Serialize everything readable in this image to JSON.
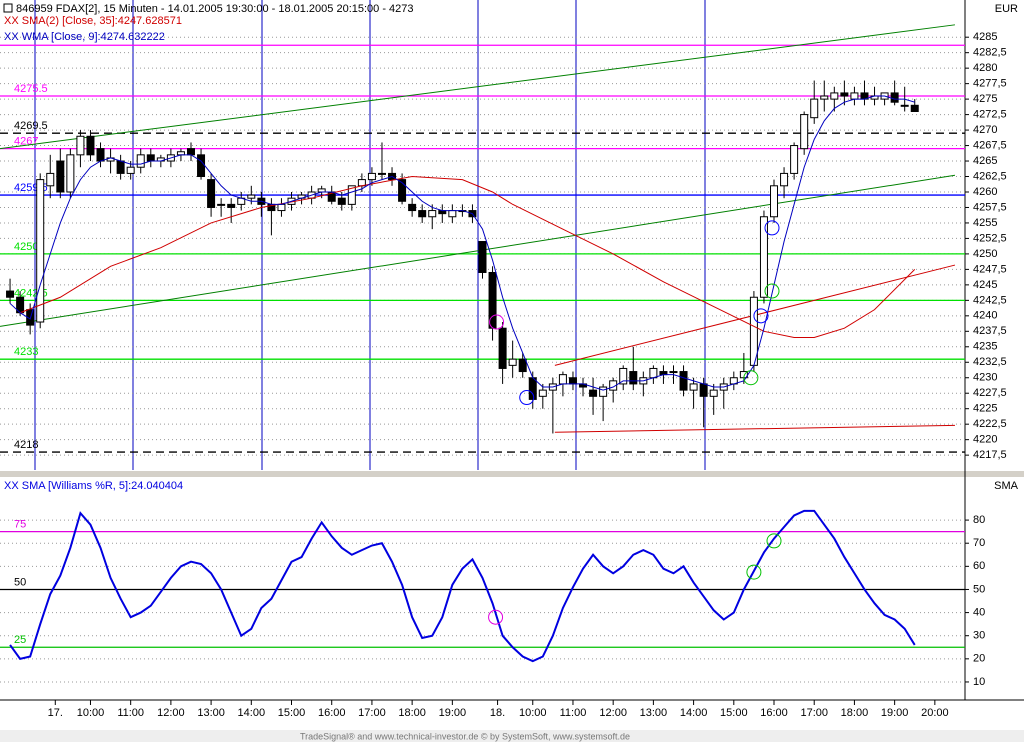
{
  "header": {
    "title": "846959 FDAX[2], 15 Minuten - 14.01.2005 19:30:00 - 18.01.2005 20:15:00 - 4273",
    "currency": "EUR"
  },
  "chart_data": [
    {
      "type": "candlestick",
      "candles": [
        [
          4244,
          4246,
          4242,
          4243
        ],
        [
          4243,
          4244,
          4240,
          4240.5
        ],
        [
          4241,
          4242,
          4237,
          4238.5
        ],
        [
          4239,
          4263,
          4238,
          4262
        ],
        [
          4261,
          4266,
          4259,
          4263
        ],
        [
          4265,
          4267,
          4259,
          4260
        ],
        [
          4260,
          4267,
          4259,
          4266
        ],
        [
          4266,
          4270,
          4264,
          4269
        ],
        [
          4269,
          4270,
          4265,
          4266
        ],
        [
          4267,
          4268,
          4264,
          4265
        ],
        [
          4265,
          4267,
          4263,
          4265.5
        ],
        [
          4265,
          4266,
          4262,
          4263
        ],
        [
          4263,
          4265,
          4262,
          4264
        ],
        [
          4264,
          4267,
          4263,
          4266
        ],
        [
          4266,
          4267,
          4264,
          4265
        ],
        [
          4265,
          4266,
          4264,
          4265.5
        ],
        [
          4265,
          4267,
          4264,
          4266
        ],
        [
          4266,
          4267,
          4265,
          4266.5
        ],
        [
          4267,
          4268,
          4265,
          4266
        ],
        [
          4266,
          4267,
          4262,
          4262.5
        ],
        [
          4262,
          4263,
          4256,
          4257.5
        ],
        [
          4258,
          4259,
          4256,
          4258
        ],
        [
          4258,
          4259,
          4255,
          4257.5
        ],
        [
          4258,
          4260,
          4257,
          4259
        ],
        [
          4259,
          4261,
          4258,
          4259.5
        ],
        [
          4259,
          4260,
          4256,
          4258
        ],
        [
          4258,
          4259,
          4253,
          4257
        ],
        [
          4257,
          4259,
          4256,
          4258
        ],
        [
          4258,
          4260,
          4257,
          4259
        ],
        [
          4259,
          4260,
          4258,
          4259.5
        ],
        [
          4259,
          4261,
          4258,
          4260
        ],
        [
          4260,
          4261,
          4259,
          4260.5
        ],
        [
          4260,
          4261,
          4258,
          4258.5
        ],
        [
          4259,
          4260,
          4257,
          4258
        ],
        [
          4258,
          4261,
          4257,
          4261
        ],
        [
          4261,
          4263,
          4260,
          4262
        ],
        [
          4262,
          4264,
          4261,
          4263
        ],
        [
          4263,
          4268,
          4262,
          4263
        ],
        [
          4263,
          4264,
          4261,
          4262
        ],
        [
          4262,
          4263,
          4258,
          4258.5
        ],
        [
          4258,
          4259,
          4256,
          4257
        ],
        [
          4257,
          4258,
          4255,
          4256
        ],
        [
          4256,
          4258,
          4254,
          4257
        ],
        [
          4257,
          4258,
          4255,
          4256.5
        ],
        [
          4256,
          4258,
          4255,
          4257
        ],
        [
          4257,
          4258,
          4256,
          4257
        ],
        [
          4257,
          4258,
          4255,
          4256
        ],
        [
          4252,
          4252,
          4246,
          4247
        ],
        [
          4247,
          4248,
          4236,
          4238
        ],
        [
          4238,
          4239,
          4229,
          4231.5
        ],
        [
          4232,
          4236,
          4230,
          4233
        ],
        [
          4233,
          4234,
          4230,
          4231
        ],
        [
          4230,
          4231,
          4225,
          4226.5
        ],
        [
          4227,
          4229,
          4225,
          4228
        ],
        [
          4228,
          4230,
          4221,
          4229
        ],
        [
          4229,
          4231,
          4227,
          4230.5
        ],
        [
          4230,
          4231,
          4228,
          4229
        ],
        [
          4229,
          4230,
          4227,
          4228.5
        ],
        [
          4228,
          4230,
          4224,
          4227
        ],
        [
          4227,
          4229,
          4223,
          4228.5
        ],
        [
          4228,
          4230,
          4226,
          4229.5
        ],
        [
          4229,
          4232,
          4228,
          4231.5
        ],
        [
          4231,
          4235,
          4228,
          4229
        ],
        [
          4229,
          4231,
          4227,
          4230
        ],
        [
          4230,
          4232,
          4229,
          4231.5
        ],
        [
          4231,
          4232,
          4229,
          4230.5
        ],
        [
          4231,
          4232,
          4229,
          4231
        ],
        [
          4231,
          4232,
          4227,
          4228
        ],
        [
          4228,
          4230,
          4225,
          4229
        ],
        [
          4229,
          4230,
          4222,
          4227
        ],
        [
          4227,
          4229,
          4224,
          4228
        ],
        [
          4228,
          4230,
          4225,
          4229
        ],
        [
          4229,
          4231,
          4228,
          4230
        ],
        [
          4230,
          4234,
          4229,
          4231
        ],
        [
          4232,
          4244,
          4231,
          4243
        ],
        [
          4243,
          4257,
          4242,
          4256
        ],
        [
          4256,
          4262,
          4255,
          4261
        ],
        [
          4261,
          4264,
          4259,
          4263
        ],
        [
          4263,
          4268,
          4262,
          4267.5
        ],
        [
          4267,
          4273,
          4266,
          4272.5
        ],
        [
          4272,
          4278,
          4271,
          4275
        ],
        [
          4275,
          4278,
          4273,
          4275.5
        ],
        [
          4275,
          4277,
          4273,
          4276
        ],
        [
          4276,
          4278,
          4274,
          4275.5
        ],
        [
          4275,
          4277,
          4274,
          4276
        ],
        [
          4276,
          4278,
          4274,
          4275
        ],
        [
          4275,
          4277,
          4274,
          4275.5
        ],
        [
          4275,
          4276,
          4274,
          4276
        ],
        [
          4276,
          4278,
          4274,
          4274.5
        ],
        [
          4274,
          4277,
          4273,
          4274
        ],
        [
          4274,
          4275,
          4273,
          4273
        ]
      ],
      "series": [
        {
          "name": "XX SMA(2) [Close, 35]:4247.628571",
          "color": "#d00000",
          "x": [
            1,
            5,
            10,
            15,
            20,
            25,
            30,
            35,
            40,
            45,
            48,
            50,
            55,
            60,
            65,
            70,
            75,
            78,
            80,
            83,
            86,
            90
          ],
          "values": [
            4240.5,
            4243,
            4248,
            4251,
            4255,
            4257.5,
            4259,
            4261,
            4262.5,
            4262,
            4260,
            4258,
            4254,
            4250,
            4245.5,
            4241.5,
            4237.5,
            4236.5,
            4236.5,
            4238,
            4241,
            4247.5
          ]
        },
        {
          "name": "XX WMA [Close, 9]:4274.632222",
          "color": "#0000c0",
          "values": [
            4242,
            4240.5,
            4239.5,
            4245,
            4250,
            4255,
            4259,
            4262,
            4264,
            4265,
            4265.5,
            4265,
            4264.5,
            4264.5,
            4265,
            4265,
            4265.5,
            4266,
            4266,
            4265,
            4263,
            4261,
            4259.5,
            4259,
            4258.5,
            4258.5,
            4258,
            4258,
            4258.5,
            4259,
            4259.5,
            4260,
            4260,
            4259.5,
            4260,
            4260.5,
            4261.5,
            4262,
            4262.5,
            4261.5,
            4260,
            4258.5,
            4257.5,
            4257,
            4257,
            4257,
            4256.5,
            4254,
            4249,
            4243,
            4238,
            4234,
            4230,
            4228.5,
            4228.5,
            4229,
            4229,
            4229,
            4228.5,
            4228,
            4228.5,
            4229.5,
            4229.5,
            4229.5,
            4230,
            4230.5,
            4230.5,
            4230,
            4229.5,
            4229,
            4228.5,
            4228.5,
            4229,
            4229.5,
            4232,
            4238,
            4245,
            4252,
            4258,
            4264,
            4268.5,
            4271.5,
            4273.5,
            4274.5,
            4275,
            4275,
            4275.5,
            4275.5,
            4275,
            4275,
            4274.5
          ]
        }
      ],
      "trendlines": [
        {
          "x": [
            -1,
            94
          ],
          "values": [
            4267,
            4287
          ],
          "color": "#008000"
        },
        {
          "x": [
            -1,
            94
          ],
          "values": [
            4238.3,
            4262.7
          ],
          "color": "#008000"
        },
        {
          "x": [
            54.2,
            94
          ],
          "values": [
            4221.2,
            4222.3
          ],
          "color": "#d00000"
        },
        {
          "x": [
            54.2,
            94
          ],
          "values": [
            4232,
            4248.2
          ],
          "color": "#d00000"
        }
      ],
      "levels": [
        {
          "value": 4283.7,
          "label": null,
          "color": "#ff00ff"
        },
        {
          "value": 4275.5,
          "color": "#ff00ff"
        },
        {
          "value": 4269.5,
          "color": "#000000",
          "style": "dashed"
        },
        {
          "value": 4267,
          "color": "#ff00ff"
        },
        {
          "value": 4259.5,
          "color": "#0000ff"
        },
        {
          "value": 4250,
          "color": "#00e000"
        },
        {
          "value": 4242.5,
          "color": "#00e000"
        },
        {
          "value": 4233,
          "color": "#00e000"
        },
        {
          "value": 4218,
          "color": "#000000",
          "style": "dashed"
        }
      ],
      "markers": [
        {
          "x": 51.4,
          "y": 4226.8,
          "color": "#0000ff"
        },
        {
          "x": 48.4,
          "y": 4239,
          "color": "#e000e0"
        },
        {
          "x": 73.7,
          "y": 4230,
          "color": "#00c000"
        },
        {
          "x": 74.7,
          "y": 4240,
          "color": "#0000ff"
        },
        {
          "x": 75.8,
          "y": 4244,
          "color": "#00c000"
        },
        {
          "x": 75.8,
          "y": 4254.2,
          "color": "#0000ff"
        }
      ],
      "xlim": [
        -1,
        95
      ],
      "ylim": [
        4215.1,
        4288.1
      ],
      "yticks": [
        {
          "value": 4217.5,
          "label": "4217,5"
        },
        4220,
        {
          "value": 4222.5,
          "label": "4222,5"
        },
        4225,
        {
          "value": 4227.5,
          "label": "4227,5"
        },
        4230,
        {
          "value": 4232.5,
          "label": "4232,5"
        },
        4235,
        {
          "value": 4237.5,
          "label": "4237,5"
        },
        4240,
        {
          "value": 4242.5,
          "label": "4242,5"
        },
        4245,
        {
          "value": 4247.5,
          "label": "4247,5"
        },
        4250,
        {
          "value": 4252.5,
          "label": "4252,5"
        },
        4255,
        {
          "value": 4257.5,
          "label": "4257,5"
        },
        4260,
        {
          "value": 4262.5,
          "label": "4262,5"
        },
        4265,
        {
          "value": 4267.5,
          "label": "4267,5"
        },
        4270,
        {
          "value": 4272.5,
          "label": "4272,5"
        },
        4275,
        {
          "value": 4277.5,
          "label": "4277,5"
        },
        4280,
        {
          "value": 4282.5,
          "label": "4282,5"
        },
        4285
      ],
      "grid": true,
      "axis_label": "EUR"
    },
    {
      "type": "line",
      "series": [
        {
          "name": "XX SMA [Williams %R, 5]:24.040404",
          "color": "#0000e0",
          "values": [
            26,
            20,
            21,
            35,
            48,
            56,
            68,
            83,
            78,
            68,
            55,
            46,
            38,
            40,
            43,
            49,
            55,
            60,
            62,
            61,
            57,
            50,
            40,
            30,
            33,
            42,
            46,
            54,
            62,
            64,
            72,
            79,
            73,
            68,
            65,
            67,
            69,
            70,
            62,
            52,
            38,
            29,
            30,
            38,
            52,
            59,
            63,
            55,
            44,
            30,
            25,
            21,
            19,
            21,
            30,
            42,
            51,
            59,
            65,
            60,
            57,
            60,
            65,
            67,
            65,
            59,
            57,
            60,
            53,
            47,
            41,
            37,
            40,
            50,
            58,
            66,
            72,
            77,
            82,
            84,
            84,
            78,
            72,
            64,
            57,
            50,
            44,
            39,
            37,
            33,
            26
          ]
        }
      ],
      "levels": [
        {
          "value": 75,
          "color": "#e000e0"
        },
        {
          "value": 50,
          "color": "#000000"
        },
        {
          "value": 25,
          "color": "#00c000"
        }
      ],
      "markers": [
        {
          "x": 48.3,
          "y": 38,
          "color": "#e000e0"
        },
        {
          "x": 74,
          "y": 57.5,
          "color": "#00c000"
        },
        {
          "x": 76,
          "y": 71,
          "color": "#00c000"
        }
      ],
      "xlim": [
        -1,
        95
      ],
      "ylim": [
        2.2,
        98.2
      ],
      "yticks": [
        10,
        20,
        30,
        40,
        50,
        60,
        70,
        80
      ],
      "grid": true,
      "axis_label": "SMA",
      "xticks": [
        {
          "value": 4.5,
          "label": "17."
        },
        {
          "value": 8,
          "label": "10:00"
        },
        {
          "value": 12,
          "label": "11:00"
        },
        {
          "value": 16,
          "label": "12:00"
        },
        {
          "value": 20,
          "label": "13:00"
        },
        {
          "value": 24,
          "label": "14:00"
        },
        {
          "value": 28,
          "label": "15:00"
        },
        {
          "value": 32,
          "label": "16:00"
        },
        {
          "value": 36,
          "label": "17:00"
        },
        {
          "value": 40,
          "label": "18:00"
        },
        {
          "value": 44,
          "label": "19:00"
        },
        {
          "value": 48.5,
          "label": "18."
        },
        {
          "value": 52,
          "label": "10:00"
        },
        {
          "value": 56,
          "label": "11:00"
        },
        {
          "value": 60,
          "label": "12:00"
        },
        {
          "value": 64,
          "label": "13:00"
        },
        {
          "value": 68,
          "label": "14:00"
        },
        {
          "value": 72,
          "label": "15:00"
        },
        {
          "value": 76,
          "label": "16:00"
        },
        {
          "value": 80,
          "label": "17:00"
        },
        {
          "value": 84,
          "label": "18:00"
        },
        {
          "value": 88,
          "label": "19:00"
        },
        {
          "value": 92,
          "label": "20:00"
        }
      ]
    }
  ],
  "footer": "TradeSignal® and www.technical-investor.de © by SystemSoft, www.systemsoft.de"
}
